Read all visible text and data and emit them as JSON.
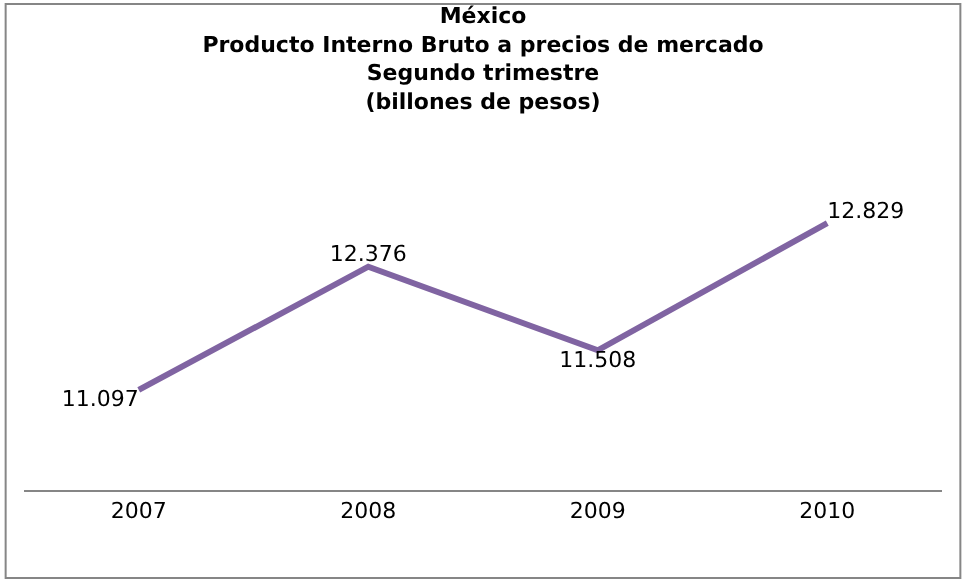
{
  "chart_data": {
    "type": "line",
    "title": "México\nProducto Interno Bruto a precios de mercado\nSegundo trimestre\n(billones de pesos)",
    "categories": [
      "2007",
      "2008",
      "2009",
      "2010"
    ],
    "series": [
      {
        "color": "#8064a2",
        "values": [
          11.097,
          12.376,
          11.508,
          12.829
        ]
      }
    ],
    "data_labels": true,
    "tick_labels": "x"
  }
}
